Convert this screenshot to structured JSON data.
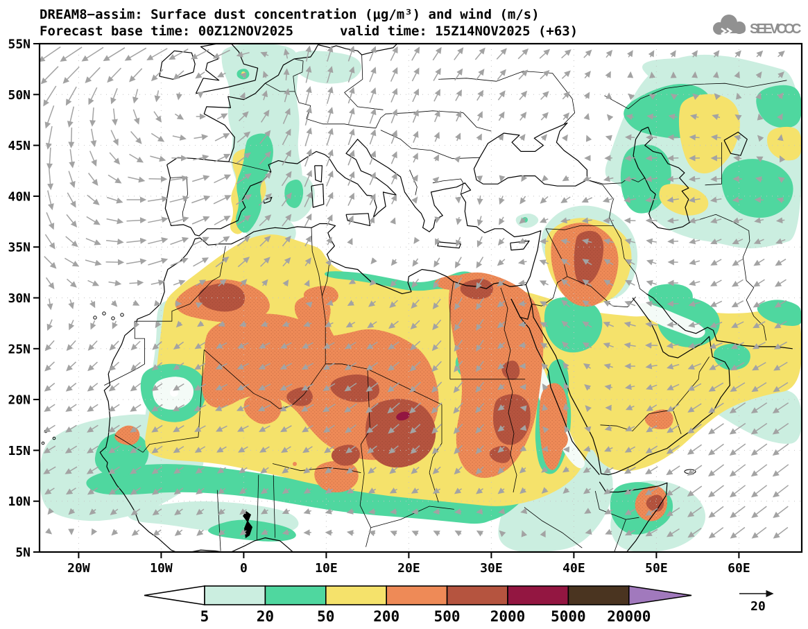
{
  "header": {
    "title": "DREAM8−assim: Surface dust concentration (μg/m³) and wind (m/s)",
    "subtitle_left": "Forecast base time: 00Z12NOV2025",
    "subtitle_right": "valid time: 15Z14NOV2025 (+63)",
    "logo_text": "SEEVCCC"
  },
  "chart_data": {
    "type": "heatmap",
    "model": "DREAM8-assim",
    "title": "Surface dust concentration (μg/m³) and wind (m/s)",
    "forecast_base_time": "00Z12NOV2025",
    "valid_time": "15Z14NOV2025",
    "lead": "+63",
    "units": {
      "dust": "μg/m³",
      "wind": "m/s"
    },
    "lat_range": [
      5,
      55
    ],
    "lon_range": [
      -24.7,
      67.6
    ],
    "grid": "dotted",
    "lat_ticks": [
      {
        "label": "5N",
        "lat": 5
      },
      {
        "label": "10N",
        "lat": 10
      },
      {
        "label": "15N",
        "lat": 15
      },
      {
        "label": "20N",
        "lat": 20
      },
      {
        "label": "25N",
        "lat": 25
      },
      {
        "label": "30N",
        "lat": 30
      },
      {
        "label": "35N",
        "lat": 35
      },
      {
        "label": "40N",
        "lat": 40
      },
      {
        "label": "45N",
        "lat": 45
      },
      {
        "label": "50N",
        "lat": 50
      },
      {
        "label": "55N",
        "lat": 55
      }
    ],
    "lon_ticks": [
      {
        "label": "20W",
        "lon": -20
      },
      {
        "label": "10W",
        "lon": -10
      },
      {
        "label": "0",
        "lon": 0
      },
      {
        "label": "10E",
        "lon": 10
      },
      {
        "label": "20E",
        "lon": 20
      },
      {
        "label": "30E",
        "lon": 30
      },
      {
        "label": "40E",
        "lon": 40
      },
      {
        "label": "50E",
        "lon": 50
      },
      {
        "label": "60E",
        "lon": 60
      }
    ],
    "legend": {
      "position": "bottom",
      "levels": [
        "5",
        "20",
        "50",
        "200",
        "500",
        "2000",
        "5000",
        "20000"
      ],
      "colors": [
        "#ffffff",
        "#cbeee0",
        "#4fd79f",
        "#f5e26b",
        "#ee8a57",
        "#b5543f",
        "#931641",
        "#4a3420",
        "#a179bd"
      ]
    },
    "wind_reference_label": "20",
    "colors": {
      "wind_arrows": "#a3a3a3",
      "coastlines": "#000000",
      "gridlines": "#c4c4c4",
      "frame": "#000000",
      "logo_gray": "#8f8f8f"
    }
  }
}
